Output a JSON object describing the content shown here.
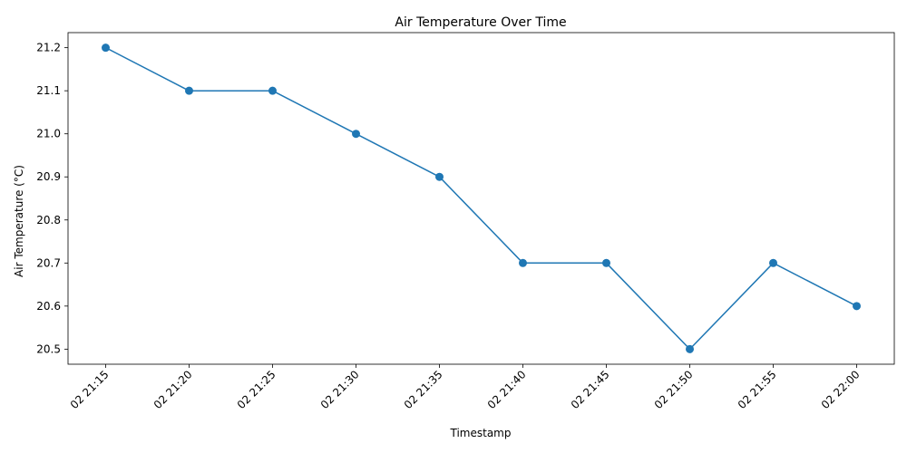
{
  "chart_data": {
    "type": "line",
    "title": "Air Temperature Over Time",
    "xlabel": "Timestamp",
    "ylabel": "Air Temperature (°C)",
    "categories": [
      "02 21:15",
      "02 21:20",
      "02 21:25",
      "02 21:30",
      "02 21:35",
      "02 21:40",
      "02 21:45",
      "02 21:50",
      "02 21:55",
      "02 22:00"
    ],
    "series": [
      {
        "values": [
          21.2,
          21.1,
          21.1,
          21.0,
          20.9,
          20.7,
          20.7,
          20.5,
          20.7,
          20.6
        ],
        "color": "#1f77b4",
        "marker": "circle"
      }
    ],
    "yticks": [
      "20.5",
      "20.6",
      "20.7",
      "20.8",
      "20.9",
      "21.0",
      "21.1",
      "21.2"
    ],
    "ylim": [
      20.465,
      21.235
    ],
    "grid": false,
    "legend": "none"
  }
}
